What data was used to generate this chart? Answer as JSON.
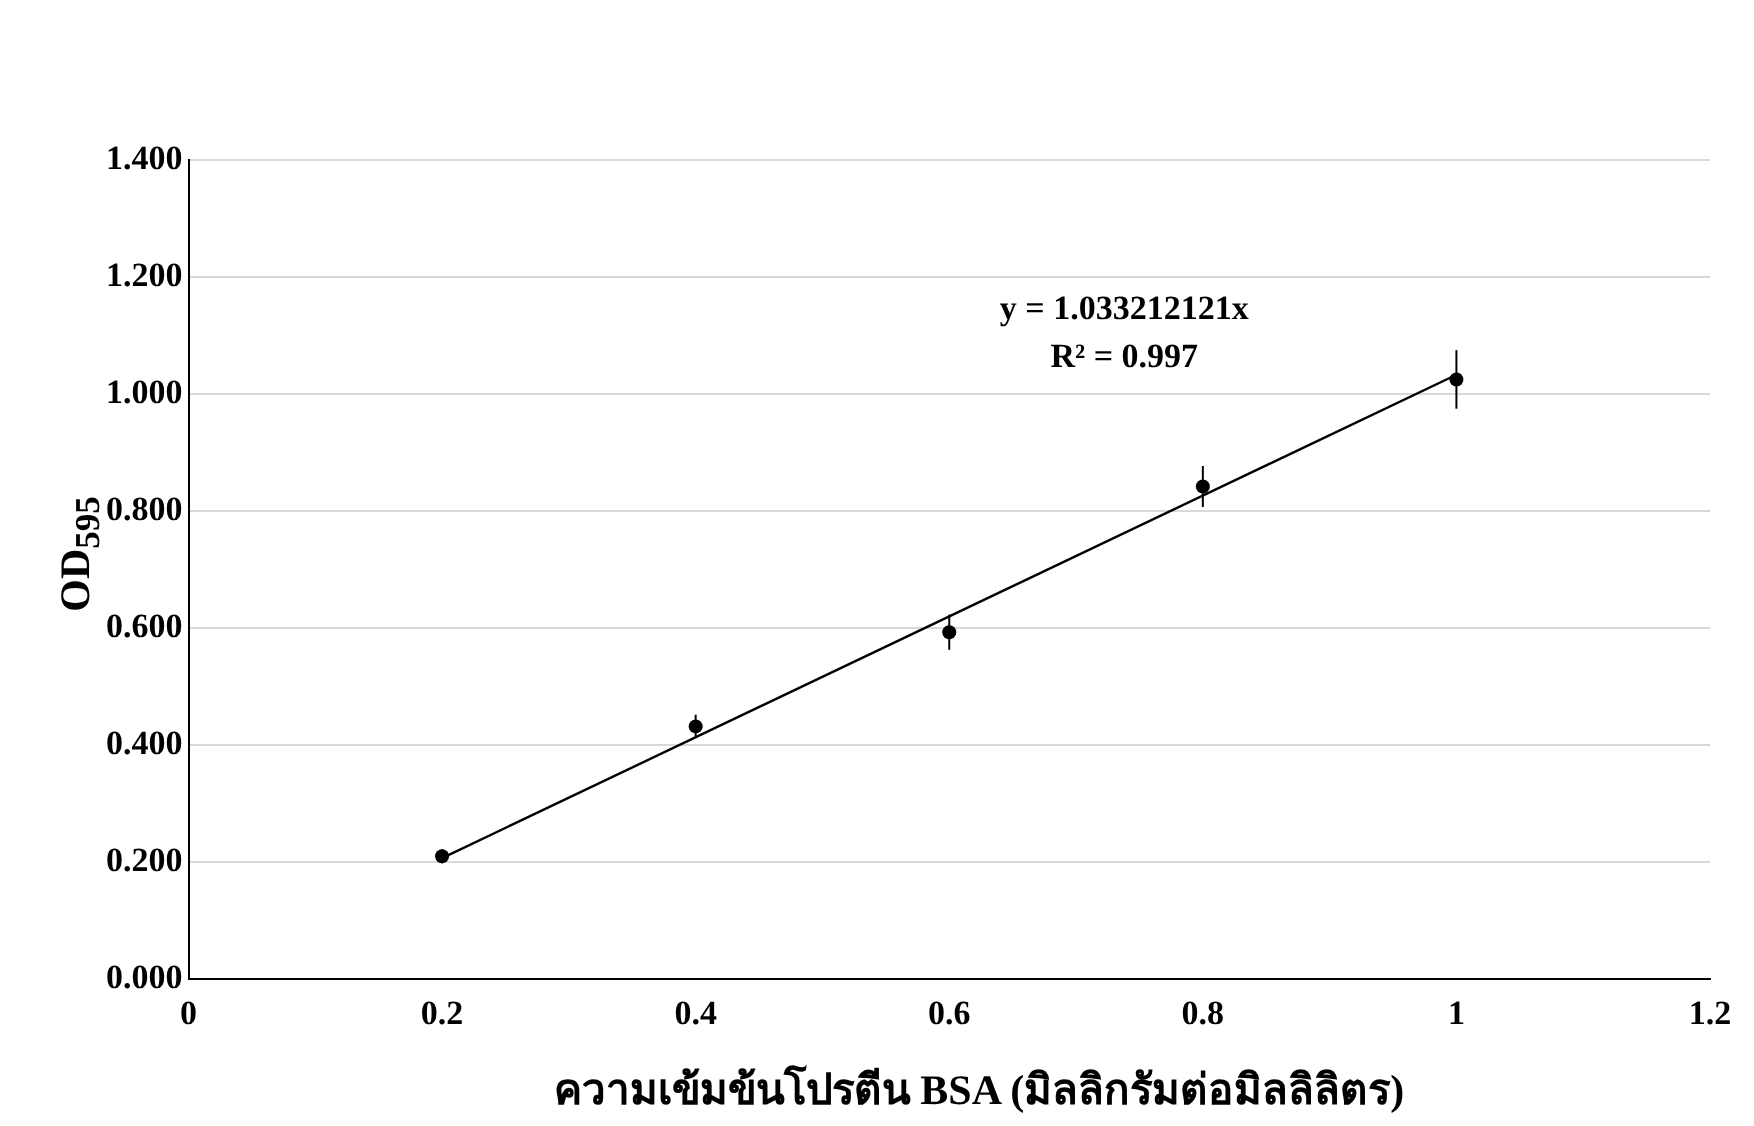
{
  "chart_data": {
    "type": "scatter",
    "xlabel": "ความเข้มข้นโปรตีน BSA (มิลลิกรัมต่อมิลลิลิตร)",
    "ylabel": "OD$_{595}$",
    "annotations": [
      "y = 1.033212121x",
      "R² = 0.997"
    ],
    "xlim": [
      0,
      1.2
    ],
    "xticks": [
      0,
      0.2,
      0.4,
      0.6,
      0.8,
      1,
      1.2
    ],
    "ylim": [
      0,
      1.4
    ],
    "yticks": [
      {
        "value": 0,
        "label": "0.000"
      },
      {
        "value": 0.2,
        "label": "0.200"
      },
      {
        "value": 0.4,
        "label": "0.400"
      },
      {
        "value": 0.6,
        "label": "0.600"
      },
      {
        "value": 0.8,
        "label": "0.800"
      },
      {
        "value": 1,
        "label": "1.000"
      },
      {
        "value": 1.2,
        "label": "1.200"
      },
      {
        "value": 1.4,
        "label": "1.400"
      }
    ],
    "grid": "y",
    "series": [
      {
        "type": "scatter",
        "color": "#000000",
        "x": [
          0.2,
          0.4,
          0.6,
          0.8,
          1.0
        ],
        "values": [
          0.21,
          0.432,
          0.593,
          0.842,
          1.025
        ],
        "errors": [
          0.012,
          0.02,
          0.03,
          0.035,
          0.05
        ],
        "marker": "circle"
      },
      {
        "type": "line",
        "color": "#000000",
        "x": [
          0.2,
          1.0
        ],
        "values": [
          0.207,
          1.033
        ],
        "marker": "none"
      }
    ]
  }
}
